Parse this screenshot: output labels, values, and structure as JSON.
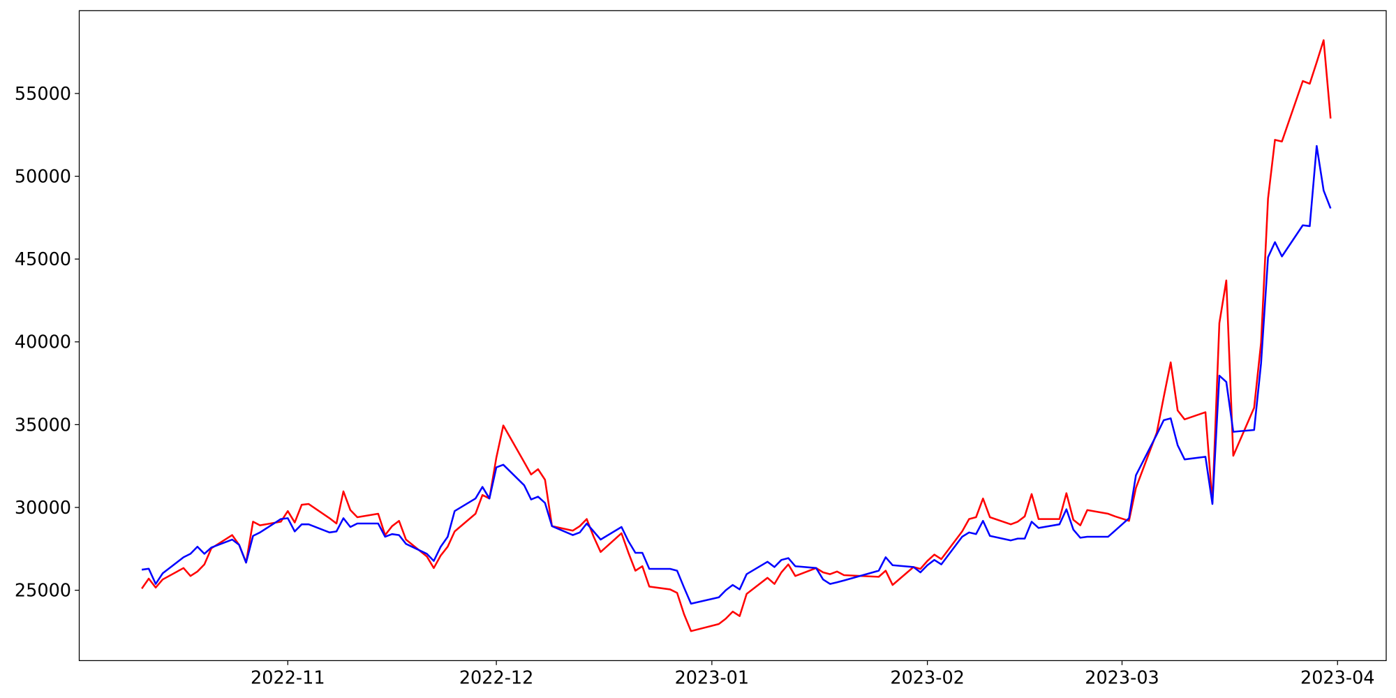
{
  "chart_data": {
    "type": "line",
    "x": [
      "2022-10-11",
      "2022-10-12",
      "2022-10-13",
      "2022-10-14",
      "2022-10-17",
      "2022-10-18",
      "2022-10-19",
      "2022-10-20",
      "2022-10-21",
      "2022-10-24",
      "2022-10-25",
      "2022-10-26",
      "2022-10-27",
      "2022-10-28",
      "2022-10-31",
      "2022-11-01",
      "2022-11-02",
      "2022-11-03",
      "2022-11-04",
      "2022-11-07",
      "2022-11-08",
      "2022-11-09",
      "2022-11-10",
      "2022-11-11",
      "2022-11-14",
      "2022-11-15",
      "2022-11-16",
      "2022-11-17",
      "2022-11-18",
      "2022-11-21",
      "2022-11-22",
      "2022-11-23",
      "2022-11-24",
      "2022-11-25",
      "2022-11-28",
      "2022-11-29",
      "2022-11-30",
      "2022-12-01",
      "2022-12-02",
      "2022-12-05",
      "2022-12-06",
      "2022-12-07",
      "2022-12-08",
      "2022-12-09",
      "2022-12-12",
      "2022-12-13",
      "2022-12-14",
      "2022-12-15",
      "2022-12-16",
      "2022-12-19",
      "2022-12-20",
      "2022-12-21",
      "2022-12-22",
      "2022-12-23",
      "2022-12-26",
      "2022-12-27",
      "2022-12-28",
      "2022-12-29",
      "2023-01-02",
      "2023-01-03",
      "2023-01-04",
      "2023-01-05",
      "2023-01-06",
      "2023-01-09",
      "2023-01-10",
      "2023-01-11",
      "2023-01-12",
      "2023-01-13",
      "2023-01-16",
      "2023-01-17",
      "2023-01-18",
      "2023-01-19",
      "2023-01-20",
      "2023-01-25",
      "2023-01-26",
      "2023-01-27",
      "2023-01-30",
      "2023-01-31",
      "2023-02-01",
      "2023-02-02",
      "2023-02-03",
      "2023-02-06",
      "2023-02-07",
      "2023-02-08",
      "2023-02-09",
      "2023-02-10",
      "2023-02-13",
      "2023-02-14",
      "2023-02-15",
      "2023-02-16",
      "2023-02-17",
      "2023-02-20",
      "2023-02-21",
      "2023-02-22",
      "2023-02-23",
      "2023-02-24",
      "2023-02-27",
      "2023-02-28",
      "2023-03-02",
      "2023-03-03",
      "2023-03-06",
      "2023-03-07",
      "2023-03-08",
      "2023-03-09",
      "2023-03-10",
      "2023-03-13",
      "2023-03-14",
      "2023-03-15",
      "2023-03-16",
      "2023-03-17",
      "2023-03-20",
      "2023-03-21",
      "2023-03-22",
      "2023-03-23",
      "2023-03-24",
      "2023-03-27",
      "2023-03-28",
      "2023-03-29",
      "2023-03-30",
      "2023-03-31"
    ],
    "series": [
      {
        "color": "#ff0000",
        "values": [
          25100,
          25700,
          25160,
          25650,
          26340,
          25860,
          26130,
          26560,
          27530,
          28330,
          27740,
          26670,
          29140,
          28920,
          29140,
          29780,
          29090,
          30160,
          30210,
          29350,
          29030,
          30970,
          29840,
          29410,
          29620,
          28330,
          28870,
          29190,
          28060,
          27040,
          26340,
          27100,
          27630,
          28550,
          29620,
          30750,
          30540,
          33010,
          34950,
          32740,
          31990,
          32310,
          31670,
          28870,
          28600,
          28870,
          29300,
          28230,
          27310,
          28440,
          27260,
          26180,
          26450,
          25220,
          25050,
          24840,
          23550,
          22530,
          22960,
          23280,
          23710,
          23440,
          24780,
          25750,
          25380,
          26080,
          26560,
          25860,
          26340,
          26080,
          25970,
          26130,
          25910,
          25810,
          26180,
          25320,
          26400,
          26290,
          26770,
          27150,
          26880,
          28550,
          29300,
          29410,
          30540,
          29410,
          28980,
          29140,
          29460,
          30810,
          29300,
          29300,
          30860,
          29250,
          28920,
          29840,
          29620,
          29460,
          29190,
          31180,
          34520,
          36670,
          38760,
          35860,
          35320,
          35750,
          30270,
          41130,
          43710,
          33120,
          36020,
          39950,
          48650,
          52200,
          52100,
          55750,
          55590,
          56880,
          58220,
          53490
        ]
      },
      {
        "color": "#0000ff",
        "values": [
          26240,
          26300,
          25380,
          26020,
          26990,
          27200,
          27630,
          27200,
          27580,
          28060,
          27740,
          26670,
          28280,
          28490,
          29300,
          29350,
          28550,
          28980,
          28980,
          28490,
          28550,
          29350,
          28820,
          29030,
          29030,
          28230,
          28390,
          28330,
          27800,
          27200,
          26770,
          27630,
          28230,
          29780,
          30540,
          31240,
          30540,
          32420,
          32580,
          31340,
          30480,
          30650,
          30270,
          28870,
          28330,
          28490,
          29030,
          28550,
          28060,
          28820,
          27960,
          27260,
          27260,
          26290,
          26290,
          26180,
          25160,
          24190,
          24570,
          25000,
          25320,
          25050,
          25970,
          26720,
          26400,
          26830,
          26940,
          26450,
          26340,
          25650,
          25380,
          25480,
          25590,
          26180,
          26990,
          26510,
          26400,
          26080,
          26510,
          26830,
          26560,
          28230,
          28490,
          28390,
          29190,
          28280,
          28010,
          28120,
          28120,
          29140,
          28760,
          28980,
          29890,
          28660,
          28170,
          28230,
          28230,
          28600,
          29350,
          31940,
          34410,
          35270,
          35380,
          33760,
          32900,
          33060,
          30210,
          37960,
          37580,
          34570,
          34680,
          38710,
          45110,
          46020,
          45160,
          47040,
          46990,
          51830,
          49140,
          48060
        ]
      }
    ],
    "xlim": [
      "2022-10-02",
      "2023-04-08"
    ],
    "xticks": [
      {
        "value": "2022-11-01",
        "label": "2022-11"
      },
      {
        "value": "2022-12-01",
        "label": "2022-12"
      },
      {
        "value": "2023-01-01",
        "label": "2023-01"
      },
      {
        "value": "2023-02-01",
        "label": "2023-02"
      },
      {
        "value": "2023-03-01",
        "label": "2023-03"
      },
      {
        "value": "2023-04-01",
        "label": "2023-04"
      }
    ],
    "ylim": [
      20750,
      60000
    ],
    "yticks": [
      25000,
      30000,
      35000,
      40000,
      45000,
      50000,
      55000
    ],
    "grid": false
  }
}
